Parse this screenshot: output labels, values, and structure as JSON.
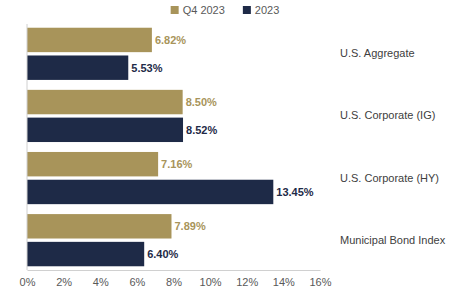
{
  "chart_data": {
    "type": "bar",
    "orientation": "horizontal",
    "categories": [
      "U.S. Aggregate",
      "U.S. Corporate (IG)",
      "U.S. Corporate (HY)",
      "Municipal Bond Index"
    ],
    "series": [
      {
        "name": "Q4 2023",
        "color": "#a8945a",
        "values": [
          6.82,
          8.5,
          7.16,
          7.89
        ],
        "value_labels": [
          "6.82%",
          "8.50%",
          "7.16%",
          "7.89%"
        ]
      },
      {
        "name": "2023",
        "color": "#1e2a47",
        "values": [
          5.53,
          8.52,
          13.45,
          6.4
        ],
        "value_labels": [
          "5.53%",
          "8.52%",
          "13.45%",
          "6.40%"
        ]
      }
    ],
    "xlim": [
      0,
      16
    ],
    "xticks": [
      {
        "value": 0,
        "label": "0%"
      },
      {
        "value": 2,
        "label": "2%"
      },
      {
        "value": 4,
        "label": "4%"
      },
      {
        "value": 6,
        "label": "6%"
      },
      {
        "value": 8,
        "label": "8%"
      },
      {
        "value": 10,
        "label": "10%"
      },
      {
        "value": 12,
        "label": "12%"
      },
      {
        "value": 14,
        "label": "14%"
      },
      {
        "value": 16,
        "label": "16%"
      }
    ],
    "grid": false,
    "legend": "top",
    "data_labels": true
  }
}
